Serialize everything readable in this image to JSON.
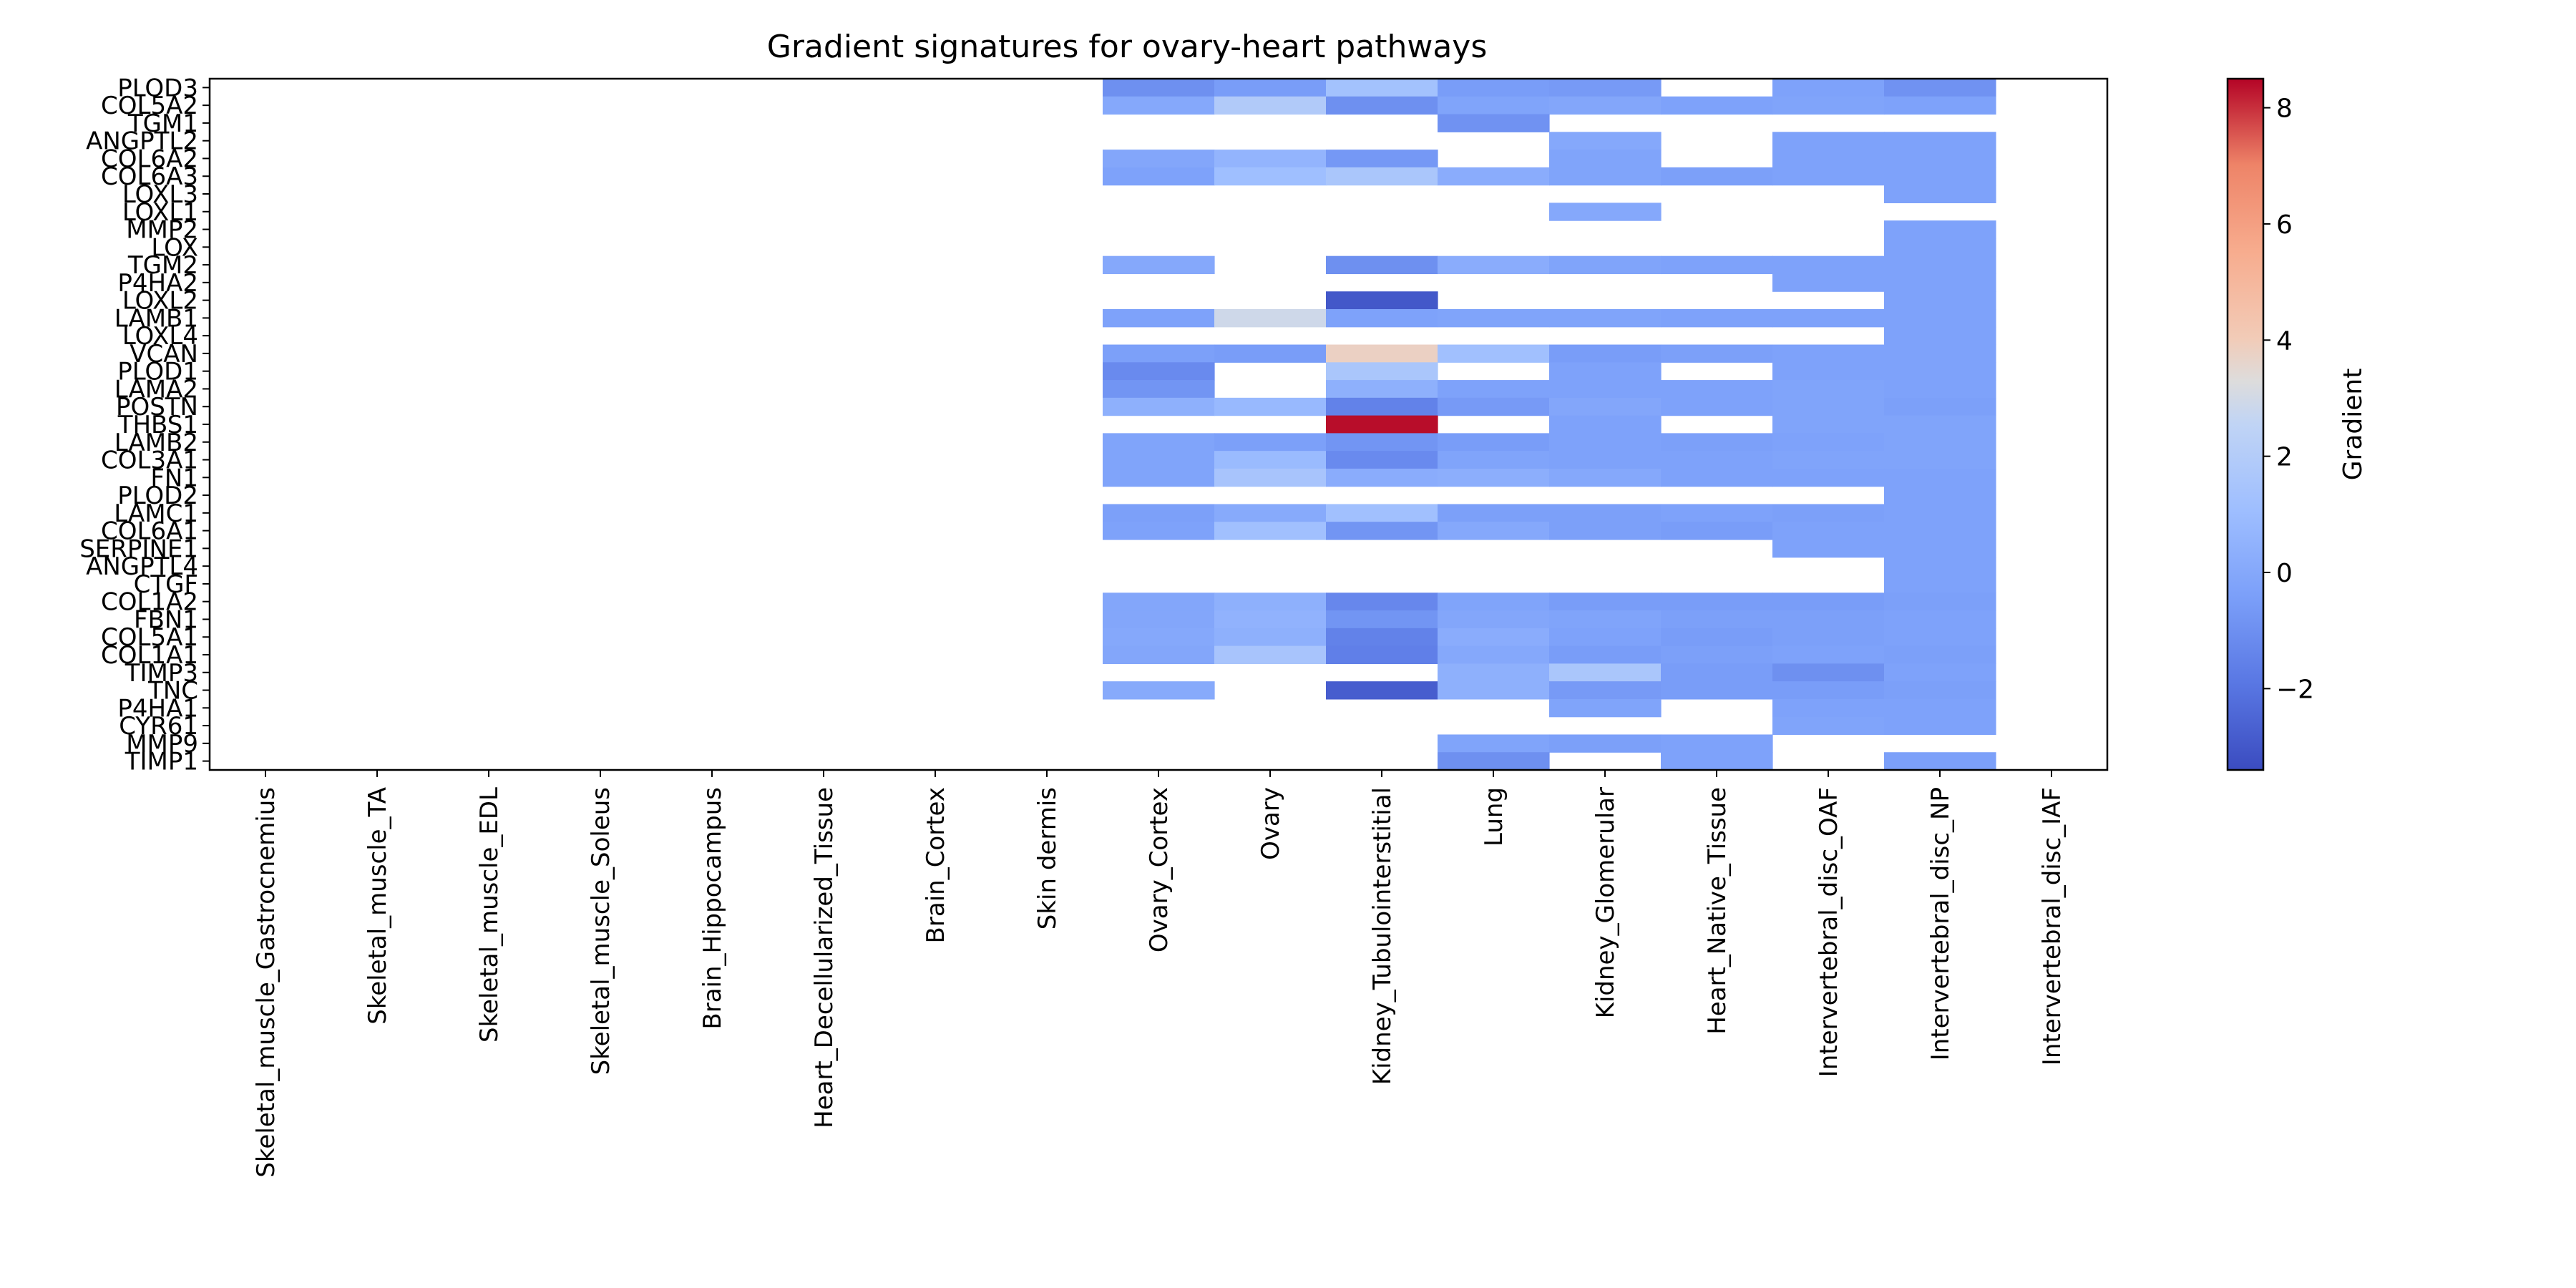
{
  "chart_data": {
    "type": "heatmap",
    "title": "Gradient signatures for ovary-heart pathways",
    "xlabel": "",
    "ylabel": "",
    "colorbar": {
      "label": "Gradient",
      "colormap": "coolwarm",
      "vmin": -3.4,
      "vmax": 8.5,
      "ticks": [
        -2,
        0,
        2,
        4,
        6,
        8
      ],
      "tick_labels": [
        "−2",
        "0",
        "2",
        "4",
        "6",
        "8"
      ]
    },
    "columns": [
      "Skeletal_muscle_Gastrocnemius",
      "Skeletal_muscle_TA",
      "Skeletal_muscle_EDL",
      "Skeletal_muscle_Soleus",
      "Brain_Hippocampus",
      "Heart_Decellularized_Tissue",
      "Brain_Cortex",
      "Skin dermis",
      "Ovary_Cortex",
      "Ovary",
      "Kidney_Tubulointerstitial",
      "Lung",
      "Kidney_Glomerular",
      "Heart_Native_Tissue",
      "Intervertebral_disc_OAF",
      "Intervertebral_disc_NP",
      "Intervertebral_disc_IAF"
    ],
    "rows": [
      "PLOD3",
      "COL5A2",
      "TGM1",
      "ANGPTL2",
      "COL6A2",
      "COL6A3",
      "LOXL3",
      "LOXL1",
      "MMP2",
      "LOX",
      "TGM2",
      "P4HA2",
      "LOXL2",
      "LAMB1",
      "LOXL4",
      "VCAN",
      "PLOD1",
      "LAMA2",
      "POSTN",
      "THBS1",
      "LAMB2",
      "COL3A1",
      "FN1",
      "PLOD2",
      "LAMC1",
      "COL6A1",
      "SERPINE1",
      "ANGPTL4",
      "CTGF",
      "COL1A2",
      "FBN1",
      "COL5A1",
      "COL1A1",
      "TIMP3",
      "TNC",
      "P4HA1",
      "CYR61",
      "MMP9",
      "TIMP1"
    ],
    "missing": "no data",
    "values": [
      [
        null,
        null,
        null,
        null,
        null,
        null,
        null,
        null,
        -1.0,
        -0.5,
        1.3,
        -0.5,
        -0.6,
        null,
        -0.3,
        -0.9,
        null
      ],
      [
        null,
        null,
        null,
        null,
        null,
        null,
        null,
        null,
        0.0,
        1.9,
        -1.0,
        -0.2,
        -0.1,
        -0.3,
        -0.2,
        -0.3,
        null
      ],
      [
        null,
        null,
        null,
        null,
        null,
        null,
        null,
        null,
        null,
        null,
        null,
        -0.9,
        null,
        null,
        null,
        null,
        null
      ],
      [
        null,
        null,
        null,
        null,
        null,
        null,
        null,
        null,
        null,
        null,
        null,
        null,
        0.0,
        null,
        -0.3,
        -0.3,
        null
      ],
      [
        null,
        null,
        null,
        null,
        null,
        null,
        null,
        null,
        -0.1,
        0.6,
        -0.7,
        null,
        -0.2,
        null,
        -0.3,
        -0.3,
        null
      ],
      [
        null,
        null,
        null,
        null,
        null,
        null,
        null,
        null,
        -0.3,
        1.1,
        1.6,
        0.2,
        -0.2,
        -0.4,
        -0.3,
        -0.3,
        null
      ],
      [
        null,
        null,
        null,
        null,
        null,
        null,
        null,
        null,
        null,
        null,
        null,
        null,
        null,
        null,
        null,
        -0.3,
        null
      ],
      [
        null,
        null,
        null,
        null,
        null,
        null,
        null,
        null,
        null,
        null,
        null,
        null,
        0.0,
        null,
        null,
        null,
        null
      ],
      [
        null,
        null,
        null,
        null,
        null,
        null,
        null,
        null,
        null,
        null,
        null,
        null,
        null,
        null,
        null,
        -0.3,
        null
      ],
      [
        null,
        null,
        null,
        null,
        null,
        null,
        null,
        null,
        null,
        null,
        null,
        null,
        null,
        null,
        null,
        -0.3,
        null
      ],
      [
        null,
        null,
        null,
        null,
        null,
        null,
        null,
        null,
        0.0,
        null,
        -1.0,
        0.2,
        -0.2,
        -0.3,
        -0.3,
        -0.3,
        null
      ],
      [
        null,
        null,
        null,
        null,
        null,
        null,
        null,
        null,
        null,
        null,
        null,
        null,
        null,
        null,
        -0.3,
        -0.3,
        null
      ],
      [
        null,
        null,
        null,
        null,
        null,
        null,
        null,
        null,
        null,
        null,
        -3.0,
        null,
        null,
        null,
        null,
        -0.3,
        null
      ],
      [
        null,
        null,
        null,
        null,
        null,
        null,
        null,
        null,
        -0.3,
        2.9,
        -0.3,
        -0.2,
        -0.2,
        -0.3,
        -0.3,
        -0.3,
        null
      ],
      [
        null,
        null,
        null,
        null,
        null,
        null,
        null,
        null,
        null,
        null,
        null,
        null,
        null,
        null,
        null,
        -0.3,
        null
      ],
      [
        null,
        null,
        null,
        null,
        null,
        null,
        null,
        null,
        -0.4,
        -0.5,
        3.8,
        1.2,
        -0.5,
        -0.4,
        -0.3,
        -0.3,
        null
      ],
      [
        null,
        null,
        null,
        null,
        null,
        null,
        null,
        null,
        -1.2,
        null,
        1.6,
        null,
        -0.3,
        null,
        -0.3,
        -0.3,
        null
      ],
      [
        null,
        null,
        null,
        null,
        null,
        null,
        null,
        null,
        -0.8,
        null,
        0.4,
        -0.3,
        -0.3,
        -0.3,
        -0.2,
        -0.3,
        null
      ],
      [
        null,
        null,
        null,
        null,
        null,
        null,
        null,
        null,
        0.4,
        0.8,
        -1.5,
        -0.6,
        -0.1,
        -0.3,
        -0.2,
        -0.4,
        null
      ],
      [
        null,
        null,
        null,
        null,
        null,
        null,
        null,
        null,
        null,
        null,
        8.4,
        null,
        -0.3,
        null,
        -0.2,
        -0.2,
        null
      ],
      [
        null,
        null,
        null,
        null,
        null,
        null,
        null,
        null,
        -0.2,
        -0.4,
        -0.8,
        -0.5,
        -0.3,
        -0.4,
        -0.3,
        -0.2,
        null
      ],
      [
        null,
        null,
        null,
        null,
        null,
        null,
        null,
        null,
        -0.2,
        0.9,
        -1.2,
        -0.2,
        -0.3,
        -0.3,
        -0.2,
        -0.2,
        null
      ],
      [
        null,
        null,
        null,
        null,
        null,
        null,
        null,
        null,
        -0.2,
        1.5,
        0.2,
        0.3,
        0.0,
        -0.3,
        -0.3,
        -0.3,
        null
      ],
      [
        null,
        null,
        null,
        null,
        null,
        null,
        null,
        null,
        null,
        null,
        null,
        null,
        null,
        null,
        null,
        -0.3,
        null
      ],
      [
        null,
        null,
        null,
        null,
        null,
        null,
        null,
        null,
        -0.4,
        0.1,
        1.2,
        -0.4,
        -0.4,
        -0.3,
        -0.4,
        -0.3,
        null
      ],
      [
        null,
        null,
        null,
        null,
        null,
        null,
        null,
        null,
        -0.3,
        1.2,
        -0.8,
        0.0,
        -0.4,
        -0.5,
        -0.3,
        -0.3,
        null
      ],
      [
        null,
        null,
        null,
        null,
        null,
        null,
        null,
        null,
        null,
        null,
        null,
        null,
        null,
        null,
        -0.3,
        -0.3,
        null
      ],
      [
        null,
        null,
        null,
        null,
        null,
        null,
        null,
        null,
        null,
        null,
        null,
        null,
        null,
        null,
        null,
        -0.3,
        null
      ],
      [
        null,
        null,
        null,
        null,
        null,
        null,
        null,
        null,
        null,
        null,
        null,
        null,
        null,
        null,
        null,
        -0.3,
        null
      ],
      [
        null,
        null,
        null,
        null,
        null,
        null,
        null,
        null,
        -0.1,
        0.4,
        -1.3,
        -0.2,
        -0.5,
        -0.5,
        -0.5,
        -0.4,
        null
      ],
      [
        null,
        null,
        null,
        null,
        null,
        null,
        null,
        null,
        -0.1,
        0.5,
        -0.8,
        -0.1,
        -0.2,
        -0.4,
        -0.4,
        -0.3,
        null
      ],
      [
        null,
        null,
        null,
        null,
        null,
        null,
        null,
        null,
        0.0,
        0.4,
        -1.5,
        0.2,
        -0.3,
        -0.5,
        -0.4,
        -0.3,
        null
      ],
      [
        null,
        null,
        null,
        null,
        null,
        null,
        null,
        null,
        -0.1,
        1.5,
        -1.6,
        0.0,
        -0.5,
        -0.4,
        -0.3,
        -0.4,
        null
      ],
      [
        null,
        null,
        null,
        null,
        null,
        null,
        null,
        null,
        null,
        null,
        null,
        0.4,
        1.6,
        -0.5,
        -1.0,
        -0.3,
        null
      ],
      [
        null,
        null,
        null,
        null,
        null,
        null,
        null,
        null,
        0.1,
        null,
        -2.8,
        0.4,
        -0.6,
        -0.5,
        -0.5,
        -0.4,
        null
      ],
      [
        null,
        null,
        null,
        null,
        null,
        null,
        null,
        null,
        null,
        null,
        null,
        null,
        -0.2,
        null,
        -0.3,
        -0.3,
        null
      ],
      [
        null,
        null,
        null,
        null,
        null,
        null,
        null,
        null,
        null,
        null,
        null,
        null,
        null,
        null,
        -0.2,
        -0.3,
        null
      ],
      [
        null,
        null,
        null,
        null,
        null,
        null,
        null,
        null,
        null,
        null,
        null,
        -0.2,
        -0.4,
        -0.3,
        null,
        null,
        null
      ],
      [
        null,
        null,
        null,
        null,
        null,
        null,
        null,
        null,
        null,
        null,
        null,
        -1.0,
        null,
        -0.3,
        null,
        -0.4,
        null
      ]
    ]
  }
}
